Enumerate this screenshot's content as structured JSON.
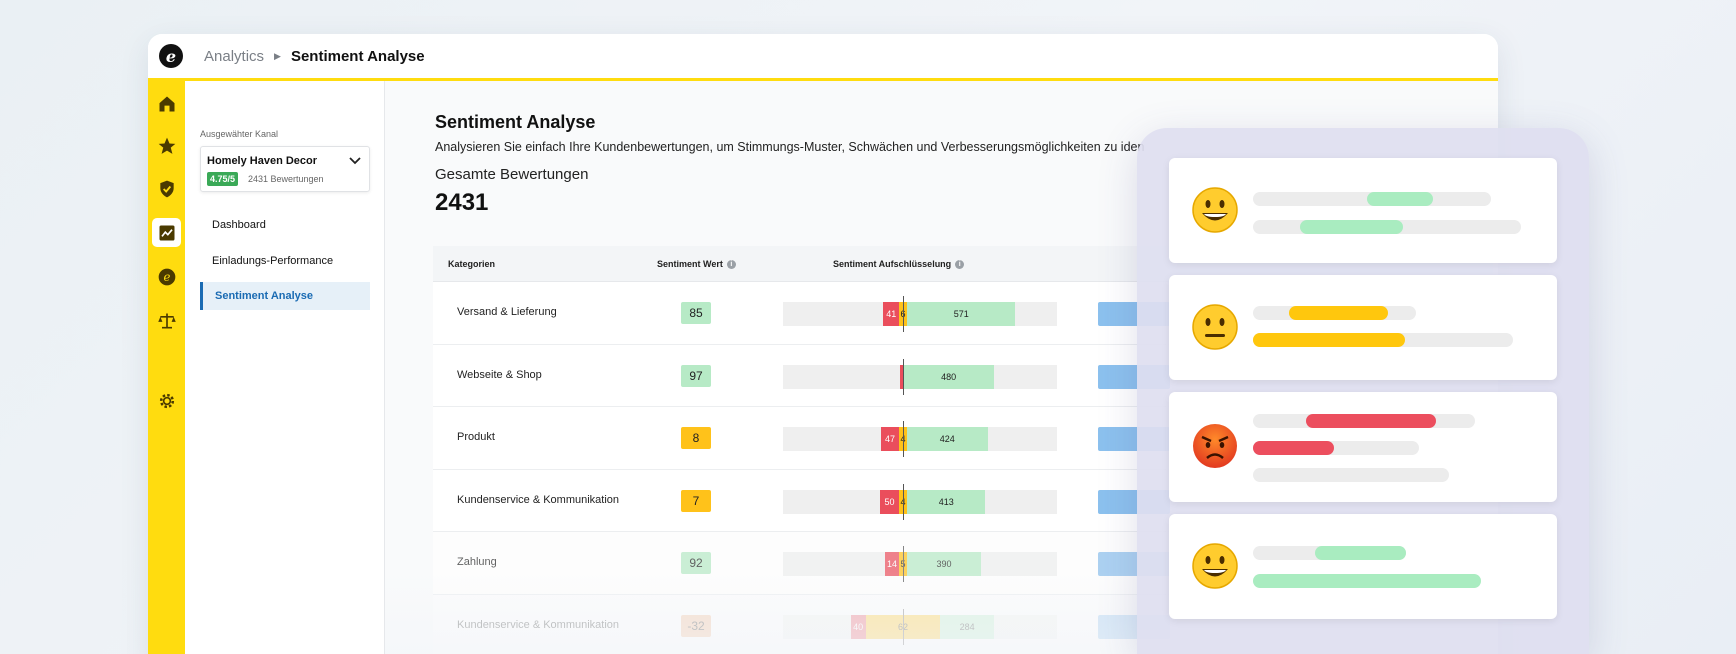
{
  "header": {
    "breadcrumb_parent": "Analytics",
    "breadcrumb_current": "Sentiment Analyse"
  },
  "rail": {
    "icons": [
      "home-icon",
      "star-icon",
      "shield-check-icon",
      "chart-trend-icon",
      "logo-coin-icon",
      "scales-icon",
      "gear-icon"
    ],
    "active": "chart-trend-icon",
    "accent": "#ffdc0f"
  },
  "sidebar": {
    "channel_label": "Ausgewähter Kanal",
    "channel_name": "Homely Haven Decor",
    "channel_rating": "4.75/5",
    "channel_reviews": "2431 Bewertungen",
    "items": [
      {
        "label": "Dashboard"
      },
      {
        "label": "Einladungs-Performance"
      },
      {
        "label": "Sentiment Analyse"
      }
    ]
  },
  "main": {
    "title": "Sentiment Analyse",
    "subtitle": "Analysieren Sie einfach Ihre Kundenbewertungen, um Stimmungs-Muster, Schwächen und Verbesserungsmöglichkeiten zu iden",
    "total_label": "Gesamte Bewertungen",
    "total_value": "2431",
    "columns": [
      "Kategorien",
      "Sentiment Wert",
      "Sentiment Aufschlüsselung"
    ],
    "rows": [
      {
        "category": "Versand & Lieferung",
        "score": "85",
        "score_color": "#b7eac6",
        "neg": 41,
        "neu": 6,
        "pos": 571
      },
      {
        "category": "Webseite & Shop",
        "score": "97",
        "score_color": "#b7eac6",
        "neg": 0,
        "neu": 0,
        "pos": 480
      },
      {
        "category": "Produkt",
        "score": "8",
        "score_color": "#ffc21a",
        "neg": 47,
        "neu": 4,
        "pos": 424
      },
      {
        "category": "Kundenservice & Kommunikation",
        "score": "7",
        "score_color": "#ffc21a",
        "neg": 50,
        "neu": 4,
        "pos": 413
      },
      {
        "category": "Zahlung",
        "score": "92",
        "score_color": "#b7eac6",
        "neg": 14,
        "neu": 5,
        "pos": 390
      },
      {
        "category": "Kundenservice & Kommunikation",
        "score": "-32",
        "score_color": "#f2b48a",
        "neg": 40,
        "neu": 62,
        "pos": 284
      }
    ]
  },
  "overlay": {
    "cards": [
      {
        "emoji": "grinning-face-icon",
        "sentiment": "positive"
      },
      {
        "emoji": "neutral-face-icon",
        "sentiment": "neutral"
      },
      {
        "emoji": "angry-face-icon",
        "sentiment": "negative"
      },
      {
        "emoji": "grinning-face-icon",
        "sentiment": "positive"
      }
    ]
  }
}
